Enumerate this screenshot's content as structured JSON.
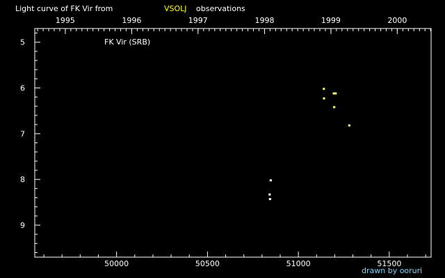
{
  "title": {
    "prefix": "Light curve of FK Vir from",
    "source": "VSOLJ",
    "suffix": "observations"
  },
  "star_label": "FK Vir (SRB)",
  "credit": "drawn by ooruri",
  "colors": {
    "background": "#000000",
    "axes": "#ffffff",
    "text": "#ffffff",
    "source_highlight": "#ffff00",
    "credit": "#7fd6ff",
    "point_a": "#ffffff",
    "point_b": "#ffff66"
  },
  "chart_data": {
    "type": "scatter",
    "title": "Light curve of FK Vir from VSOLJ observations",
    "x_axis": {
      "label": "",
      "range": [
        49550,
        51730
      ],
      "tick_labels": [
        50000,
        50500,
        51000,
        51500
      ]
    },
    "top_axis": {
      "label": "",
      "tick_labels": [
        "1995",
        "1996",
        "1997",
        "1998",
        "1999",
        "2000"
      ],
      "tick_jd": [
        49718,
        50083,
        50448,
        50814,
        51179,
        51544
      ]
    },
    "y_axis": {
      "label": "",
      "range": [
        4.7,
        9.7
      ],
      "inverted": true,
      "tick_labels": [
        5,
        6,
        7,
        8,
        9
      ]
    },
    "grid": false,
    "series": [
      {
        "color": "#ffffff",
        "points": [
          {
            "x": 50848,
            "y": 8.02
          },
          {
            "x": 50842,
            "y": 8.33
          },
          {
            "x": 50844,
            "y": 8.43
          }
        ]
      },
      {
        "color": "#ffff66",
        "points": [
          {
            "x": 51140,
            "y": 6.02
          },
          {
            "x": 51141,
            "y": 6.23
          },
          {
            "x": 51195,
            "y": 6.12
          },
          {
            "x": 51205,
            "y": 6.12
          },
          {
            "x": 51197,
            "y": 6.42
          },
          {
            "x": 51280,
            "y": 6.82
          }
        ]
      }
    ]
  }
}
